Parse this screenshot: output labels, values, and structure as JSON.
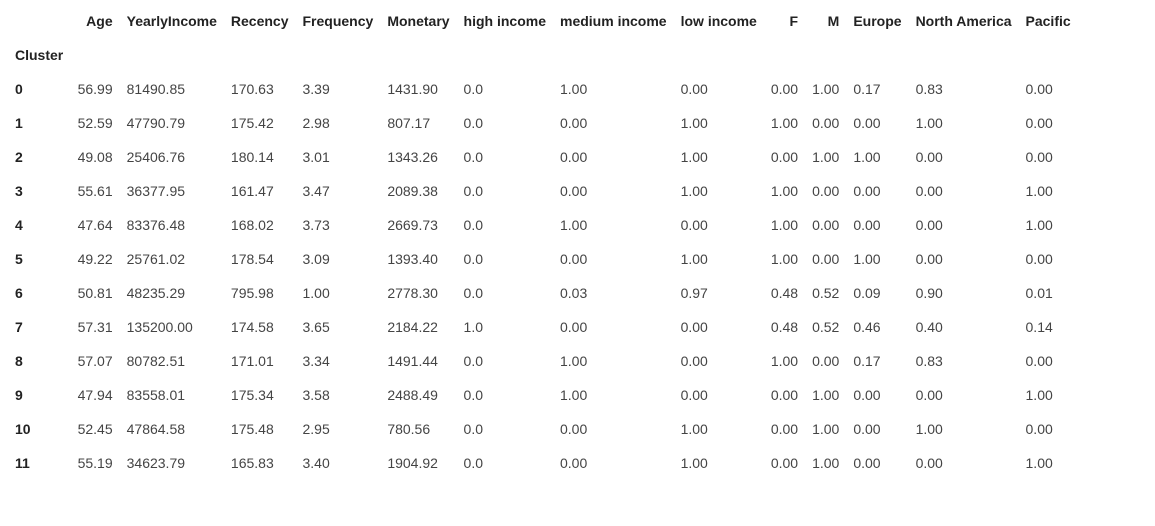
{
  "table": {
    "index_name": "Cluster",
    "columns": [
      "Age",
      "YearlyIncome",
      "Recency",
      "Frequency",
      "Monetary",
      "high income",
      "medium income",
      "low income",
      "F",
      "M",
      "Europe",
      "North America",
      "Pacific"
    ],
    "rows": [
      {
        "index": "0",
        "values": [
          "56.99",
          "81490.85",
          "170.63",
          "3.39",
          "1431.90",
          "0.0",
          "1.00",
          "0.00",
          "0.00",
          "1.00",
          "0.17",
          "0.83",
          "0.00"
        ]
      },
      {
        "index": "1",
        "values": [
          "52.59",
          "47790.79",
          "175.42",
          "2.98",
          "807.17",
          "0.0",
          "0.00",
          "1.00",
          "1.00",
          "0.00",
          "0.00",
          "1.00",
          "0.00"
        ]
      },
      {
        "index": "2",
        "values": [
          "49.08",
          "25406.76",
          "180.14",
          "3.01",
          "1343.26",
          "0.0",
          "0.00",
          "1.00",
          "0.00",
          "1.00",
          "1.00",
          "0.00",
          "0.00"
        ]
      },
      {
        "index": "3",
        "values": [
          "55.61",
          "36377.95",
          "161.47",
          "3.47",
          "2089.38",
          "0.0",
          "0.00",
          "1.00",
          "1.00",
          "0.00",
          "0.00",
          "0.00",
          "1.00"
        ]
      },
      {
        "index": "4",
        "values": [
          "47.64",
          "83376.48",
          "168.02",
          "3.73",
          "2669.73",
          "0.0",
          "1.00",
          "0.00",
          "1.00",
          "0.00",
          "0.00",
          "0.00",
          "1.00"
        ]
      },
      {
        "index": "5",
        "values": [
          "49.22",
          "25761.02",
          "178.54",
          "3.09",
          "1393.40",
          "0.0",
          "0.00",
          "1.00",
          "1.00",
          "0.00",
          "1.00",
          "0.00",
          "0.00"
        ]
      },
      {
        "index": "6",
        "values": [
          "50.81",
          "48235.29",
          "795.98",
          "1.00",
          "2778.30",
          "0.0",
          "0.03",
          "0.97",
          "0.48",
          "0.52",
          "0.09",
          "0.90",
          "0.01"
        ]
      },
      {
        "index": "7",
        "values": [
          "57.31",
          "135200.00",
          "174.58",
          "3.65",
          "2184.22",
          "1.0",
          "0.00",
          "0.00",
          "0.48",
          "0.52",
          "0.46",
          "0.40",
          "0.14"
        ]
      },
      {
        "index": "8",
        "values": [
          "57.07",
          "80782.51",
          "171.01",
          "3.34",
          "1491.44",
          "0.0",
          "1.00",
          "0.00",
          "1.00",
          "0.00",
          "0.17",
          "0.83",
          "0.00"
        ]
      },
      {
        "index": "9",
        "values": [
          "47.94",
          "83558.01",
          "175.34",
          "3.58",
          "2488.49",
          "0.0",
          "1.00",
          "0.00",
          "0.00",
          "1.00",
          "0.00",
          "0.00",
          "1.00"
        ]
      },
      {
        "index": "10",
        "values": [
          "52.45",
          "47864.58",
          "175.48",
          "2.95",
          "780.56",
          "0.0",
          "0.00",
          "1.00",
          "0.00",
          "1.00",
          "0.00",
          "1.00",
          "0.00"
        ]
      },
      {
        "index": "11",
        "values": [
          "55.19",
          "34623.79",
          "165.83",
          "3.40",
          "1904.92",
          "0.0",
          "0.00",
          "1.00",
          "0.00",
          "1.00",
          "0.00",
          "0.00",
          "1.00"
        ]
      }
    ]
  },
  "colors": {
    "header_text": "#222222",
    "cell_text": "#444444",
    "background": "#ffffff"
  }
}
